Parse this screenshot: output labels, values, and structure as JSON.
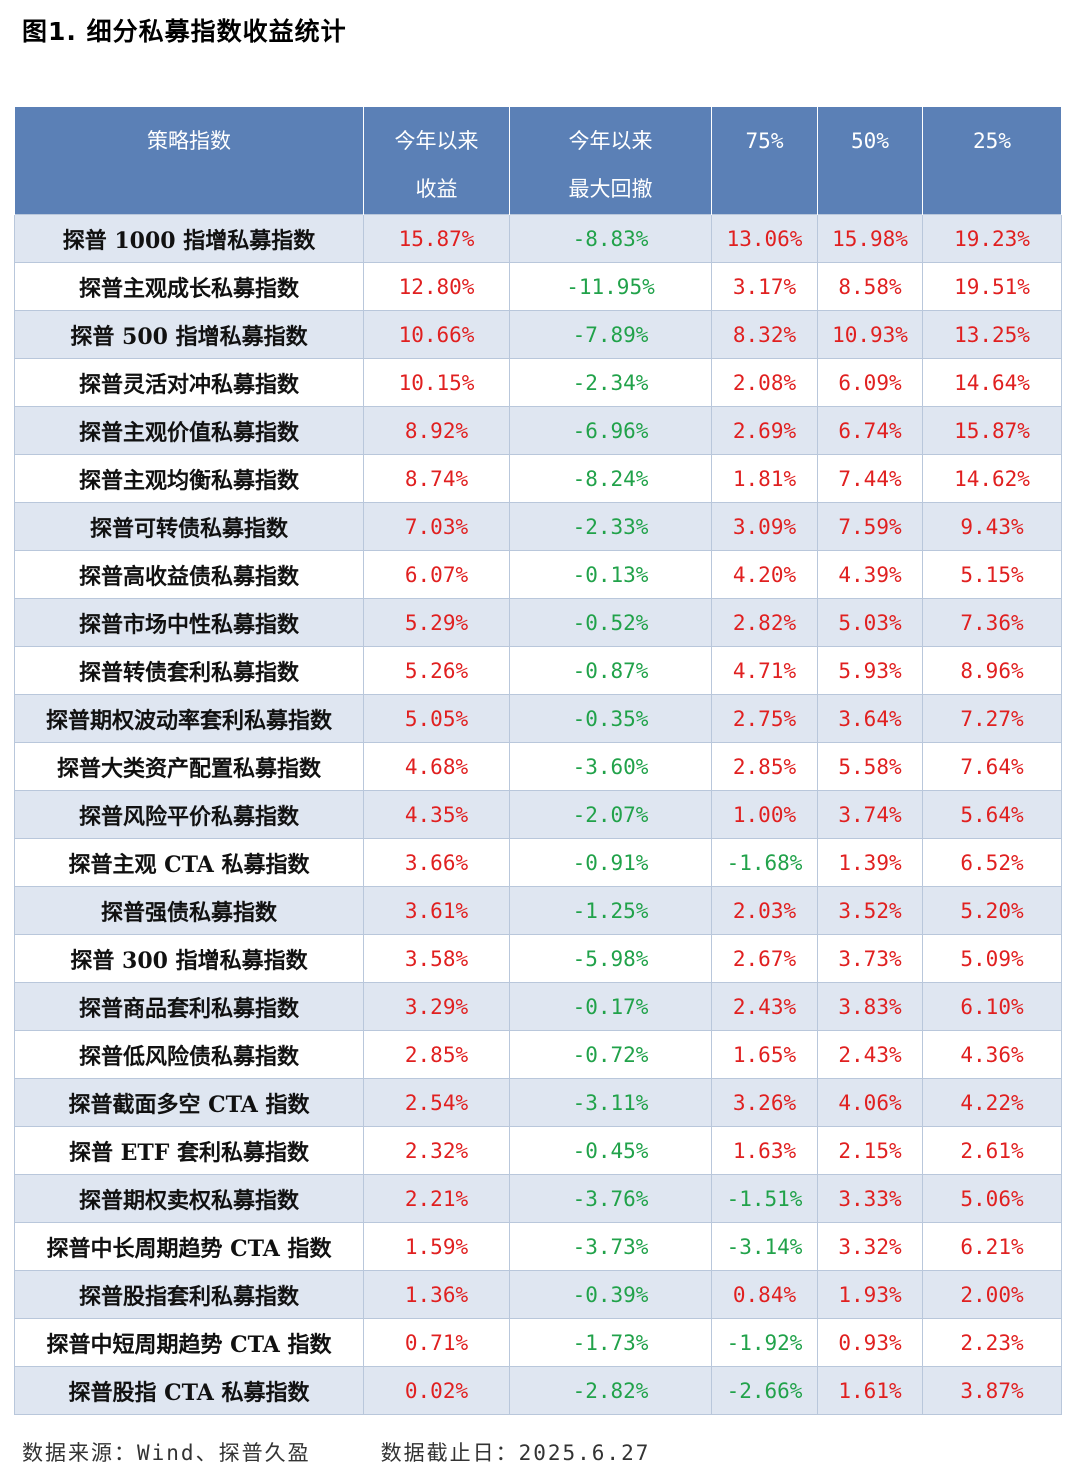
{
  "title": "图1. 细分私募指数收益统计",
  "headers": {
    "name": "策略指数",
    "ytd_line1": "今年以来",
    "ytd_line2": "收益",
    "mdd_line1": "今年以来",
    "mdd_line2": "最大回撤",
    "p75": "75%",
    "p50": "50%",
    "p25": "25%"
  },
  "rows": [
    {
      "name": "探普 1000 指增私募指数",
      "ytd": "15.87%",
      "mdd": "-8.83%",
      "p75": "13.06%",
      "p50": "15.98%",
      "p25": "19.23%"
    },
    {
      "name": "探普主观成长私募指数",
      "ytd": "12.80%",
      "mdd": "-11.95%",
      "p75": "3.17%",
      "p50": "8.58%",
      "p25": "19.51%"
    },
    {
      "name": "探普 500 指增私募指数",
      "ytd": "10.66%",
      "mdd": "-7.89%",
      "p75": "8.32%",
      "p50": "10.93%",
      "p25": "13.25%"
    },
    {
      "name": "探普灵活对冲私募指数",
      "ytd": "10.15%",
      "mdd": "-2.34%",
      "p75": "2.08%",
      "p50": "6.09%",
      "p25": "14.64%"
    },
    {
      "name": "探普主观价值私募指数",
      "ytd": "8.92%",
      "mdd": "-6.96%",
      "p75": "2.69%",
      "p50": "6.74%",
      "p25": "15.87%"
    },
    {
      "name": "探普主观均衡私募指数",
      "ytd": "8.74%",
      "mdd": "-8.24%",
      "p75": "1.81%",
      "p50": "7.44%",
      "p25": "14.62%"
    },
    {
      "name": "探普可转债私募指数",
      "ytd": "7.03%",
      "mdd": "-2.33%",
      "p75": "3.09%",
      "p50": "7.59%",
      "p25": "9.43%"
    },
    {
      "name": "探普高收益债私募指数",
      "ytd": "6.07%",
      "mdd": "-0.13%",
      "p75": "4.20%",
      "p50": "4.39%",
      "p25": "5.15%"
    },
    {
      "name": "探普市场中性私募指数",
      "ytd": "5.29%",
      "mdd": "-0.52%",
      "p75": "2.82%",
      "p50": "5.03%",
      "p25": "7.36%"
    },
    {
      "name": "探普转债套利私募指数",
      "ytd": "5.26%",
      "mdd": "-0.87%",
      "p75": "4.71%",
      "p50": "5.93%",
      "p25": "8.96%"
    },
    {
      "name": "探普期权波动率套利私募指数",
      "ytd": "5.05%",
      "mdd": "-0.35%",
      "p75": "2.75%",
      "p50": "3.64%",
      "p25": "7.27%"
    },
    {
      "name": "探普大类资产配置私募指数",
      "ytd": "4.68%",
      "mdd": "-3.60%",
      "p75": "2.85%",
      "p50": "5.58%",
      "p25": "7.64%"
    },
    {
      "name": "探普风险平价私募指数",
      "ytd": "4.35%",
      "mdd": "-2.07%",
      "p75": "1.00%",
      "p50": "3.74%",
      "p25": "5.64%"
    },
    {
      "name": "探普主观 CTA 私募指数",
      "ytd": "3.66%",
      "mdd": "-0.91%",
      "p75": "-1.68%",
      "p50": "1.39%",
      "p25": "6.52%"
    },
    {
      "name": "探普强债私募指数",
      "ytd": "3.61%",
      "mdd": "-1.25%",
      "p75": "2.03%",
      "p50": "3.52%",
      "p25": "5.20%"
    },
    {
      "name": "探普 300 指增私募指数",
      "ytd": "3.58%",
      "mdd": "-5.98%",
      "p75": "2.67%",
      "p50": "3.73%",
      "p25": "5.09%"
    },
    {
      "name": "探普商品套利私募指数",
      "ytd": "3.29%",
      "mdd": "-0.17%",
      "p75": "2.43%",
      "p50": "3.83%",
      "p25": "6.10%"
    },
    {
      "name": "探普低风险债私募指数",
      "ytd": "2.85%",
      "mdd": "-0.72%",
      "p75": "1.65%",
      "p50": "2.43%",
      "p25": "4.36%"
    },
    {
      "name": "探普截面多空 CTA 指数",
      "ytd": "2.54%",
      "mdd": "-3.11%",
      "p75": "3.26%",
      "p50": "4.06%",
      "p25": "4.22%"
    },
    {
      "name": "探普 ETF 套利私募指数",
      "ytd": "2.32%",
      "mdd": "-0.45%",
      "p75": "1.63%",
      "p50": "2.15%",
      "p25": "2.61%"
    },
    {
      "name": "探普期权卖权私募指数",
      "ytd": "2.21%",
      "mdd": "-3.76%",
      "p75": "-1.51%",
      "p50": "3.33%",
      "p25": "5.06%"
    },
    {
      "name": "探普中长周期趋势 CTA 指数",
      "ytd": "1.59%",
      "mdd": "-3.73%",
      "p75": "-3.14%",
      "p50": "3.32%",
      "p25": "6.21%"
    },
    {
      "name": "探普股指套利私募指数",
      "ytd": "1.36%",
      "mdd": "-0.39%",
      "p75": "0.84%",
      "p50": "1.93%",
      "p25": "2.00%"
    },
    {
      "name": "探普中短周期趋势 CTA 指数",
      "ytd": "0.71%",
      "mdd": "-1.73%",
      "p75": "-1.92%",
      "p50": "0.93%",
      "p25": "2.23%"
    },
    {
      "name": "探普股指 CTA 私募指数",
      "ytd": "0.02%",
      "mdd": "-2.82%",
      "p75": "-2.66%",
      "p50": "1.61%",
      "p25": "3.87%"
    }
  ],
  "footer": {
    "source": "数据来源：Wind、探普久盈",
    "date": "数据截止日：2025.6.27"
  },
  "colors": {
    "header_bg": "#5b80b6",
    "stripe_bg": "#dfe6f1",
    "positive": "#e02020",
    "negative": "#21a24a"
  }
}
